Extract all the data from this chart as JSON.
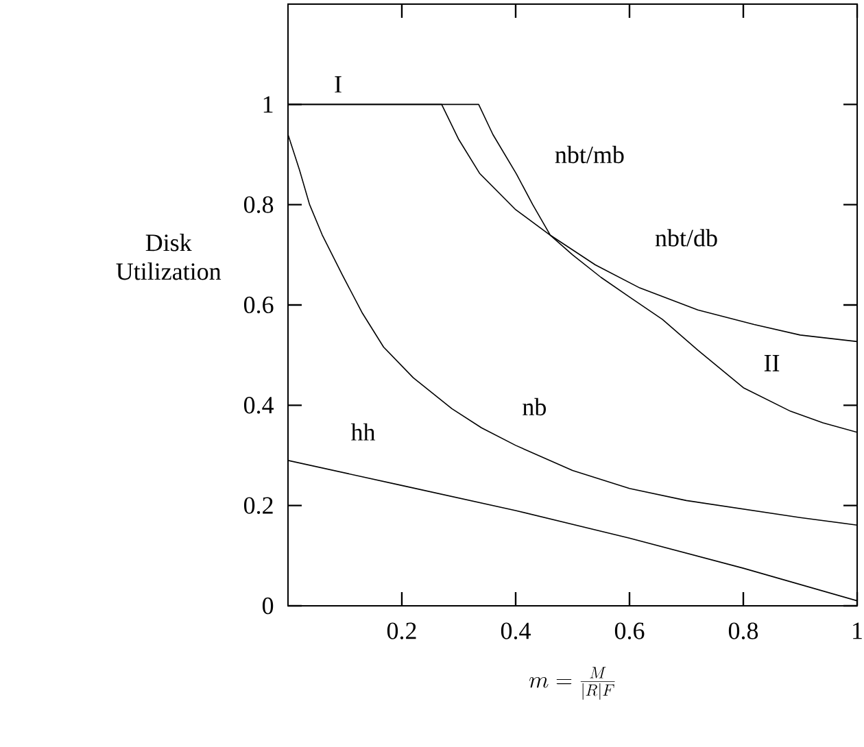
{
  "chart_data": {
    "type": "line",
    "xlabel": "m = \\frac{M}{|R|F}",
    "ylabel": "Disk Utilization",
    "xlim": [
      0,
      1
    ],
    "ylim": [
      0,
      1.2
    ],
    "xticks": [
      0.2,
      0.4,
      0.6,
      0.8,
      1
    ],
    "yticks": [
      0,
      0.2,
      0.4,
      0.6,
      0.8,
      1
    ],
    "grid": false,
    "marker": "none",
    "line_style": "solid",
    "series": [
      {
        "name": "hh",
        "color": "#000000",
        "x": [
          0,
          0.2,
          0.4,
          0.6,
          0.8,
          1
        ],
        "values": [
          0.29,
          0.24,
          0.19,
          0.135,
          0.075,
          0.01
        ]
      },
      {
        "name": "nb",
        "color": "#000000",
        "x": [
          0,
          0.02,
          0.038,
          0.06,
          0.095,
          0.13,
          0.168,
          0.22,
          0.288,
          0.34,
          0.4,
          0.5,
          0.6,
          0.7,
          0.8,
          0.9,
          1
        ],
        "values": [
          0.94,
          0.87,
          0.8,
          0.74,
          0.661,
          0.585,
          0.516,
          0.455,
          0.393,
          0.355,
          0.32,
          0.27,
          0.234,
          0.21,
          0.193,
          0.176,
          0.161
        ]
      },
      {
        "name": "nbt/mb",
        "color": "#000000",
        "x": [
          0,
          0.335,
          0.36,
          0.401,
          0.43,
          0.461,
          0.5,
          0.55,
          0.6,
          0.658,
          0.72,
          0.8,
          0.883,
          0.94,
          1
        ],
        "values": [
          1,
          1,
          0.94,
          0.862,
          0.8,
          0.739,
          0.7,
          0.655,
          0.616,
          0.571,
          0.51,
          0.435,
          0.388,
          0.365,
          0.346
        ]
      },
      {
        "name": "nbt/db",
        "color": "#000000",
        "x": [
          0,
          0.27,
          0.3,
          0.337,
          0.4,
          0.461,
          0.54,
          0.618,
          0.72,
          0.819,
          0.9,
          1
        ],
        "values": [
          1,
          1,
          0.93,
          0.862,
          0.79,
          0.739,
          0.68,
          0.634,
          0.59,
          0.561,
          0.54,
          0.527
        ]
      }
    ],
    "annotations": [
      "I",
      "II"
    ]
  }
}
